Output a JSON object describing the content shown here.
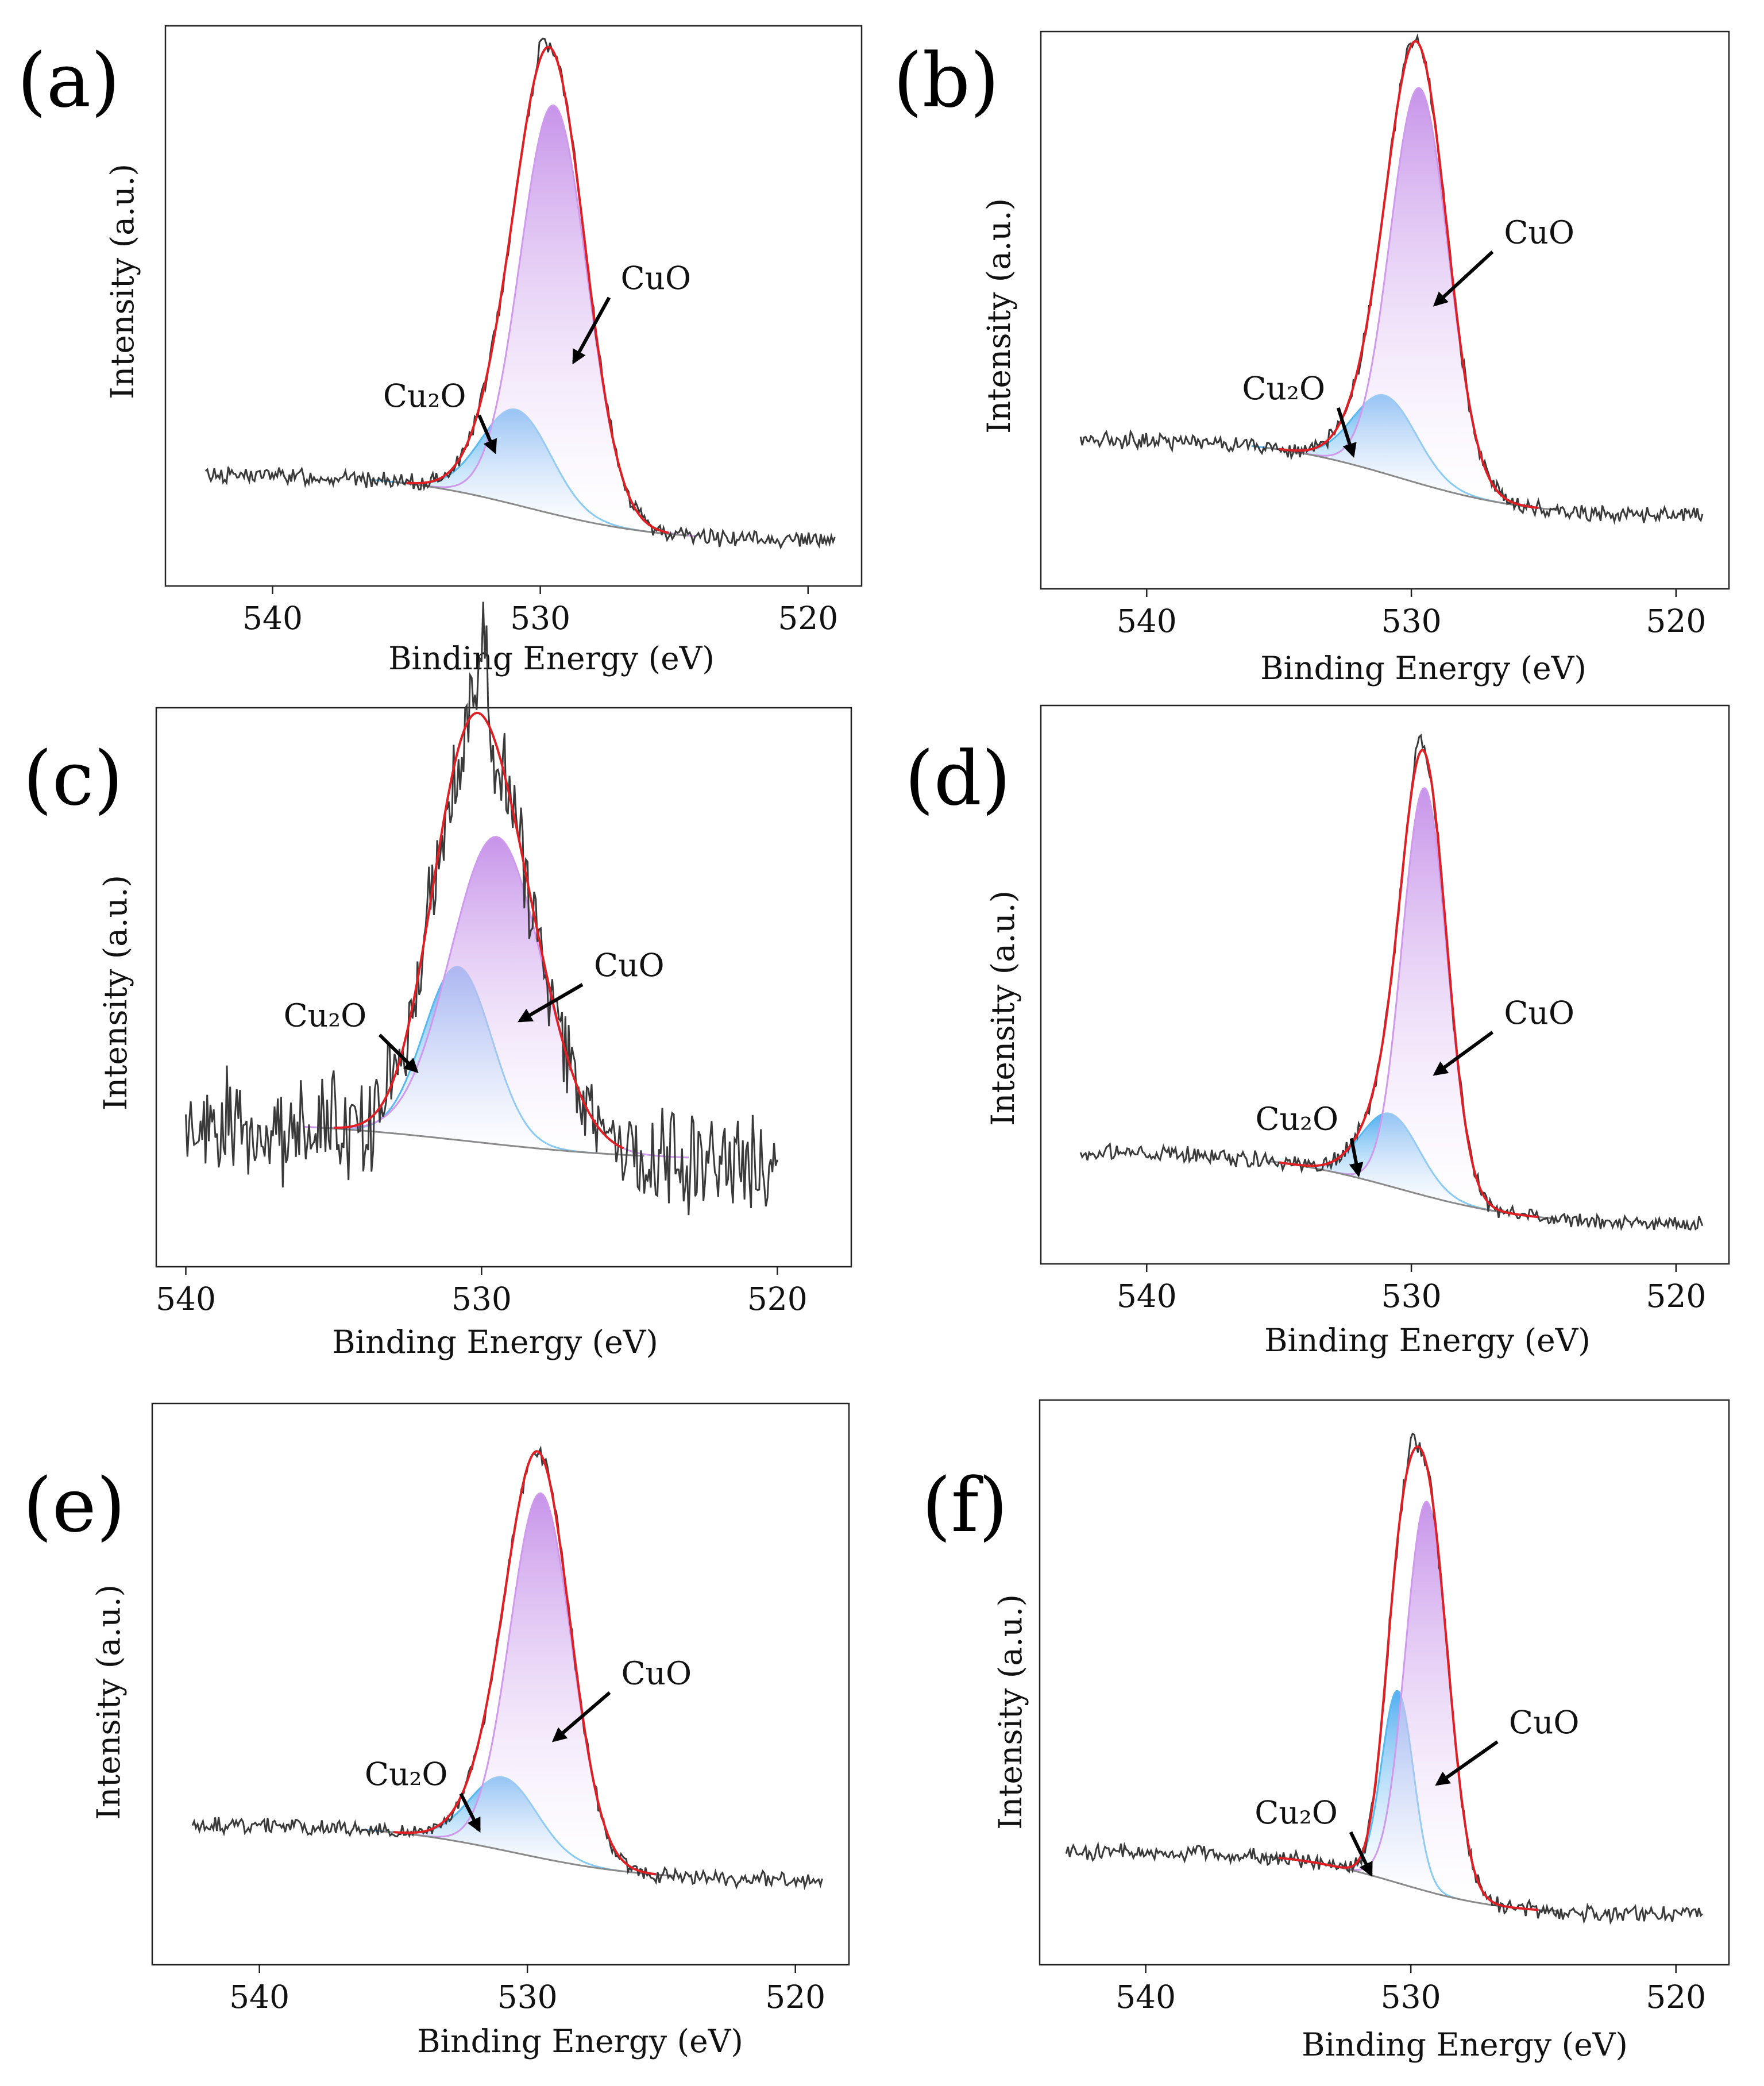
{
  "figure": {
    "colors": {
      "raw": "#3a3a3a",
      "envelope": "#e01f24",
      "cuo_fill_top": "#4aaaf0",
      "cuo_line": "#5ab8f0",
      "cu2o_fill_top": "#c48ee8",
      "cu2o_line": "#cf99ee",
      "background": "#8a8a8a",
      "arrow": "#000000"
    }
  },
  "chart_data": [
    {
      "type": "line",
      "label": "(a)",
      "xlabel": "Binding Energy (eV)",
      "ylabel": "Intensity (a.u.)",
      "xlim": [
        544,
        518
      ],
      "ylim": [
        0,
        100
      ],
      "xticks": [
        540,
        530,
        520
      ],
      "data_xrange": [
        542.5,
        519
      ],
      "background": {
        "start": 20,
        "end": 8,
        "center": 530.5,
        "width": 2.5
      },
      "components": [
        {
          "name": "CuO",
          "center": 529.5,
          "amplitude": 73,
          "sigma": 1.25
        },
        {
          "name": "Cu2O",
          "center": 530.9,
          "amplitude": 17,
          "sigma": 1.3
        }
      ],
      "noise": 1.1,
      "spike": {
        "x": 529.95,
        "dy": 3
      },
      "annotations": [
        {
          "text": "CuO",
          "text_at": [
            527.0,
            52
          ],
          "arrow_to": [
            528.75,
            40
          ]
        },
        {
          "text": "Cu₂O",
          "text_at": [
            534.0,
            31
          ],
          "arrow_to": [
            531.7,
            24
          ]
        }
      ]
    },
    {
      "type": "line",
      "label": "(b)",
      "xlabel": "Binding Energy (eV)",
      "ylabel": "Intensity (a.u.)",
      "xlim": [
        544,
        518
      ],
      "ylim": [
        0,
        100
      ],
      "xticks": [
        540,
        530,
        520
      ],
      "data_xrange": [
        542.5,
        519
      ],
      "background": {
        "start": 27,
        "end": 13,
        "center": 530.5,
        "width": 2.5
      },
      "components": [
        {
          "name": "CuO",
          "center": 529.7,
          "amplitude": 71,
          "sigma": 1.1
        },
        {
          "name": "Cu2O",
          "center": 531.0,
          "amplitude": 14,
          "sigma": 1.2
        }
      ],
      "noise": 1.1,
      "spike": {
        "x": 529.85,
        "dy": 0
      },
      "annotations": [
        {
          "text": "CuO",
          "text_at": [
            526.5,
            61
          ],
          "arrow_to": [
            529.1,
            51
          ]
        },
        {
          "text": "Cu₂O",
          "text_at": [
            534.5,
            33
          ],
          "arrow_to": [
            532.2,
            24
          ]
        }
      ]
    },
    {
      "type": "line",
      "label": "(c)",
      "xlabel": "Binding Energy (eV)",
      "ylabel": "Intensity (a.u.)",
      "xlim": [
        541,
        517.5
      ],
      "ylim": [
        0,
        100
      ],
      "xticks": [
        540,
        530,
        520
      ],
      "data_xrange": [
        540,
        520
      ],
      "background": {
        "start": 26,
        "end": 19,
        "center": 530.5,
        "width": 3.0
      },
      "components": [
        {
          "name": "CuO",
          "center": 529.5,
          "amplitude": 55,
          "sigma": 1.55
        },
        {
          "name": "Cu2O",
          "center": 530.8,
          "amplitude": 31,
          "sigma": 1.15
        }
      ],
      "noise": 7,
      "spike": {
        "x": 529.95,
        "dy": 12
      },
      "annotations": [
        {
          "text": "CuO",
          "text_at": [
            526.2,
            51
          ],
          "arrow_to": [
            528.7,
            44
          ]
        },
        {
          "text": "Cu₂O",
          "text_at": [
            535.0,
            42
          ],
          "arrow_to": [
            532.2,
            35
          ]
        }
      ]
    },
    {
      "type": "line",
      "label": "(d)",
      "xlabel": "Binding Energy (eV)",
      "ylabel": "Intensity (a.u.)",
      "xlim": [
        544,
        518
      ],
      "ylim": [
        0,
        100
      ],
      "xticks": [
        540,
        530,
        520
      ],
      "data_xrange": [
        542.5,
        519
      ],
      "background": {
        "start": 20,
        "end": 7,
        "center": 530.5,
        "width": 2.5
      },
      "components": [
        {
          "name": "CuO",
          "center": 529.5,
          "amplitude": 73,
          "sigma": 0.85
        },
        {
          "name": "Cu2O",
          "center": 530.8,
          "amplitude": 13,
          "sigma": 1.1
        }
      ],
      "noise": 1.1,
      "spike": {
        "x": 529.75,
        "dy": 3
      },
      "annotations": [
        {
          "text": "CuO",
          "text_at": [
            526.5,
            42
          ],
          "arrow_to": [
            529.1,
            34
          ]
        },
        {
          "text": "Cu₂O",
          "text_at": [
            534.0,
            23
          ],
          "arrow_to": [
            532.0,
            16
          ]
        }
      ]
    },
    {
      "type": "line",
      "label": "(e)",
      "xlabel": "Binding Energy (eV)",
      "ylabel": "Intensity (a.u.)",
      "xlim": [
        544,
        518
      ],
      "ylim": [
        0,
        100
      ],
      "xticks": [
        540,
        530,
        520
      ],
      "data_xrange": [
        542.5,
        519
      ],
      "background": {
        "start": 25,
        "end": 15,
        "center": 530.5,
        "width": 2.5
      },
      "components": [
        {
          "name": "CuO",
          "center": 529.5,
          "amplitude": 65,
          "sigma": 1.15
        },
        {
          "name": "Cu2O",
          "center": 530.9,
          "amplitude": 13,
          "sigma": 1.25
        }
      ],
      "noise": 1.0,
      "spike": {
        "x": 529.85,
        "dy": 0
      },
      "annotations": [
        {
          "text": "CuO",
          "text_at": [
            526.5,
            49
          ],
          "arrow_to": [
            529.0,
            40
          ]
        },
        {
          "text": "Cu₂O",
          "text_at": [
            534.2,
            31
          ],
          "arrow_to": [
            531.8,
            24
          ]
        }
      ]
    },
    {
      "type": "line",
      "label": "(f)",
      "xlabel": "Binding Energy (eV)",
      "ylabel": "Intensity (a.u.)",
      "xlim": [
        544,
        518
      ],
      "ylim": [
        0,
        100
      ],
      "xticks": [
        540,
        530,
        520
      ],
      "data_xrange": [
        543,
        519
      ],
      "background": {
        "start": 20,
        "end": 9,
        "center": 530.5,
        "width": 2.0
      },
      "components": [
        {
          "name": "CuO",
          "center": 529.4,
          "amplitude": 69,
          "sigma": 0.8
        },
        {
          "name": "Cu2O",
          "center": 530.5,
          "amplitude": 34,
          "sigma": 0.6
        }
      ],
      "noise": 1.1,
      "spike": {
        "x": 529.95,
        "dy": 3
      },
      "annotations": [
        {
          "text": "CuO",
          "text_at": [
            526.3,
            40
          ],
          "arrow_to": [
            529.0,
            32
          ]
        },
        {
          "text": "Cu₂O",
          "text_at": [
            534.0,
            24
          ],
          "arrow_to": [
            531.5,
            16
          ]
        }
      ]
    }
  ]
}
